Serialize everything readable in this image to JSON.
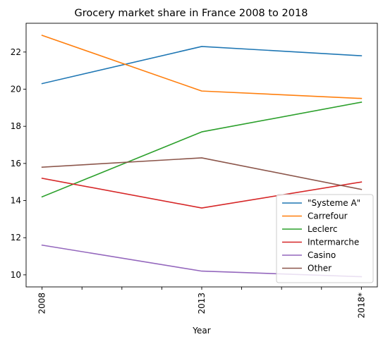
{
  "chart_data": {
    "type": "line",
    "title": "Grocery market share in France 2008 to 2018",
    "xlabel": "Year",
    "ylabel": "",
    "x": [
      "2008",
      "2013",
      "2018*"
    ],
    "x_positions": [
      0,
      4,
      8
    ],
    "minor_x_positions": [
      1,
      2,
      3,
      5,
      6,
      7
    ],
    "xlim": [
      -0.4,
      8.4
    ],
    "ylim": [
      9.35,
      23.55
    ],
    "y_ticks": [
      10,
      12,
      14,
      16,
      18,
      20,
      22
    ],
    "grid": false,
    "legend_position": "lower right",
    "series": [
      {
        "name": "\"Systeme A\"",
        "color": "#1f77b4",
        "values": [
          20.3,
          22.3,
          21.8
        ]
      },
      {
        "name": "Carrefour",
        "color": "#ff7f0e",
        "values": [
          22.9,
          19.9,
          19.5
        ]
      },
      {
        "name": "Leclerc",
        "color": "#2ca02c",
        "values": [
          14.2,
          17.7,
          19.3
        ]
      },
      {
        "name": "Intermarche",
        "color": "#d62728",
        "values": [
          15.2,
          13.6,
          15.0
        ]
      },
      {
        "name": "Casino",
        "color": "#9467bd",
        "values": [
          11.6,
          10.2,
          9.9
        ]
      },
      {
        "name": "Other",
        "color": "#8c564b",
        "values": [
          15.8,
          16.3,
          14.6
        ]
      }
    ]
  }
}
